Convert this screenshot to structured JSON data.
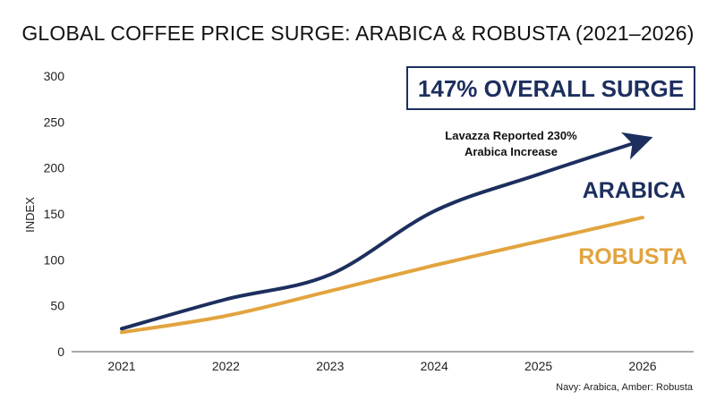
{
  "chart_data": {
    "type": "line",
    "title": "GLOBAL COFFEE PRICE SURGE: ARABICA & ROBUSTA (2021–2026)",
    "ylabel": "INDEX",
    "xlabel": "",
    "x": [
      "2021",
      "2022",
      "2023",
      "2024",
      "2025",
      "2026"
    ],
    "ylim": [
      0,
      300
    ],
    "yticks": [
      0,
      50,
      100,
      150,
      200,
      250,
      300
    ],
    "grid": false,
    "series": [
      {
        "name": "ARABICA",
        "color": "#1c2f5e",
        "values": [
          25,
          57,
          84,
          153,
          193,
          230
        ],
        "arrow_end": true
      },
      {
        "name": "ROBUSTA",
        "color": "#e2a43f",
        "values": [
          21,
          39,
          66,
          94,
          120,
          146
        ]
      }
    ],
    "badge": "147% OVERALL SURGE",
    "annotation": [
      "Lavazza Reported 230%",
      "Arabica Increase"
    ],
    "footnote": "Navy: Arabica, Amber: Robusta"
  }
}
